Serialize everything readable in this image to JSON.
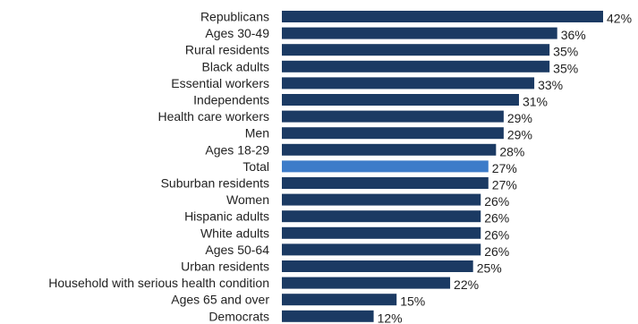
{
  "chart_data": {
    "type": "bar",
    "orientation": "horizontal",
    "categories": [
      "Republicans",
      "Ages 30-49",
      "Rural residents",
      "Black adults",
      "Essential workers",
      "Independents",
      "Health care workers",
      "Men",
      "Ages 18-29",
      "Total",
      "Suburban residents",
      "Women",
      "Hispanic adults",
      "White adults",
      "Ages 50-64",
      "Urban residents",
      "Household with serious health condition",
      "Ages 65 and over",
      "Democrats"
    ],
    "values": [
      42,
      36,
      35,
      35,
      33,
      31,
      29,
      29,
      28,
      27,
      27,
      26,
      26,
      26,
      26,
      25,
      22,
      15,
      12
    ],
    "value_labels": [
      "42%",
      "36%",
      "35%",
      "35%",
      "33%",
      "31%",
      "29%",
      "29%",
      "28%",
      "27%",
      "27%",
      "26%",
      "26%",
      "26%",
      "26%",
      "25%",
      "22%",
      "15%",
      "12%"
    ],
    "highlight_category": "Total",
    "colors": {
      "bar": "#1b3a63",
      "highlight": "#3d7cc9",
      "text": "#222222"
    },
    "xlim": [
      0,
      42
    ],
    "grid": false,
    "legend": "none",
    "title": "",
    "xlabel": "",
    "ylabel": ""
  }
}
